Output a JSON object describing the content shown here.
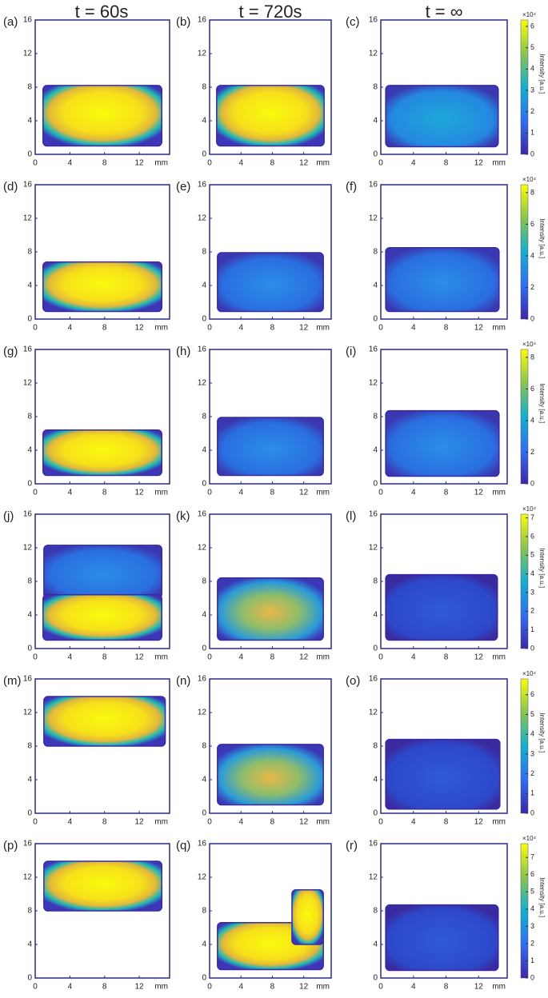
{
  "column_headers": [
    "t = 60s",
    "t = 720s",
    "t = ∞"
  ],
  "panel_labels": [
    "(a)",
    "(b)",
    "(c)",
    "(d)",
    "(e)",
    "(f)",
    "(g)",
    "(h)",
    "(i)",
    "(j)",
    "(k)",
    "(l)",
    "(m)",
    "(n)",
    "(o)",
    "(p)",
    "(q)",
    "(r)"
  ],
  "axes": {
    "xlim": [
      0,
      15.5
    ],
    "ylim": [
      0,
      16
    ],
    "xticks": [
      0,
      4,
      8,
      12
    ],
    "yticks": [
      0,
      4,
      8,
      12,
      16
    ],
    "x_unit": "mm"
  },
  "colorbar_label": "Intensity [a.u.]",
  "colorbar_multiplier": "×10⁴",
  "colorbars": [
    {
      "clim": [
        0,
        6.3
      ],
      "ticks": [
        0,
        1,
        2,
        3,
        4,
        5,
        6
      ]
    },
    {
      "clim": [
        0,
        8.5
      ],
      "ticks": [
        0,
        2,
        4,
        6,
        8
      ]
    },
    {
      "clim": [
        0,
        8.5
      ],
      "ticks": [
        0,
        2,
        4,
        6,
        8
      ]
    },
    {
      "clim": [
        0,
        7.2
      ],
      "ticks": [
        0,
        1,
        2,
        3,
        4,
        5,
        6,
        7
      ]
    },
    {
      "clim": [
        0,
        6.8
      ],
      "ticks": [
        0,
        1,
        2,
        3,
        4,
        5,
        6
      ]
    },
    {
      "clim": [
        0,
        7.8
      ],
      "ticks": [
        0,
        1,
        2,
        3,
        4,
        5,
        6,
        7
      ]
    }
  ]
}
